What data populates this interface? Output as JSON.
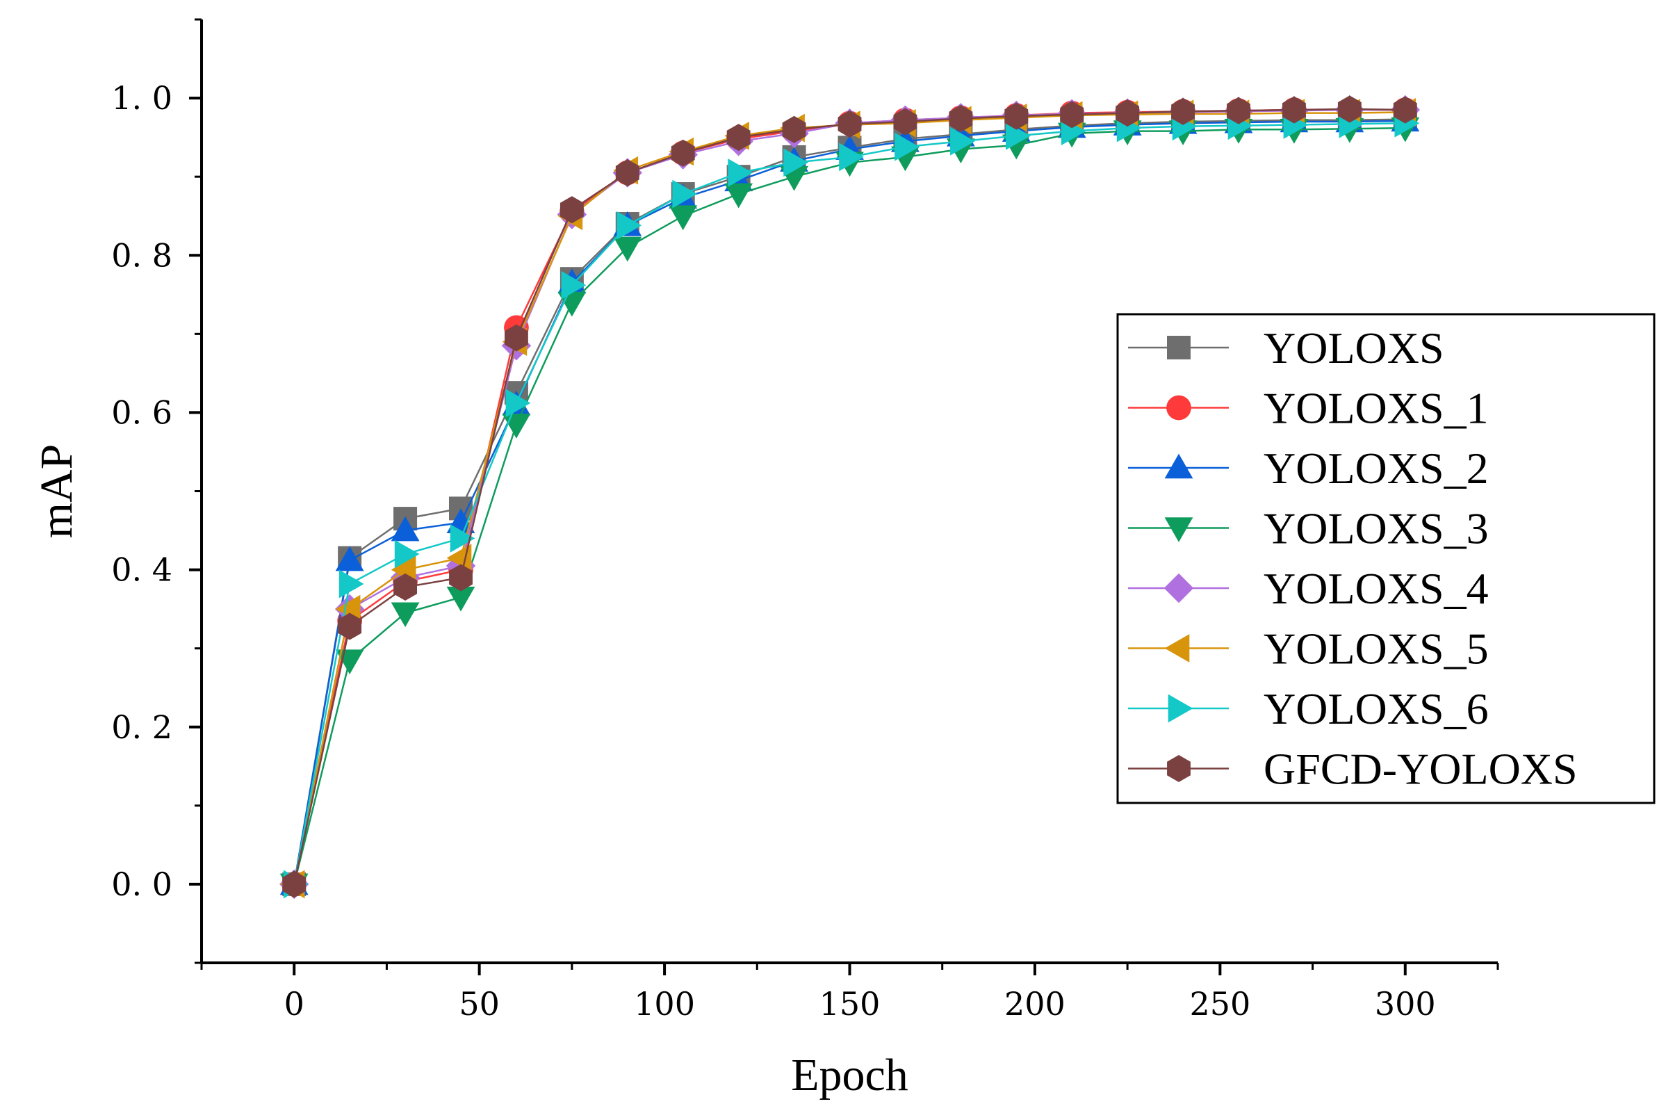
{
  "chart_data": {
    "type": "line",
    "title": "",
    "xlabel": "Epoch",
    "ylabel": "mAP",
    "xlim": [
      -25,
      325
    ],
    "ylim": [
      -0.1,
      1.1
    ],
    "xticks": [
      0,
      50,
      100,
      150,
      200,
      250,
      300
    ],
    "xtick_labels": [
      "0",
      "50",
      "100",
      "150",
      "200",
      "250",
      "300"
    ],
    "yticks": [
      0.0,
      0.2,
      0.4,
      0.6,
      0.8,
      1.0
    ],
    "ytick_labels": [
      "0. 0",
      "0. 2",
      "0. 4",
      "0. 6",
      "0. 8",
      "1. 0"
    ],
    "grid": false,
    "legend_position": "right",
    "x": [
      0,
      15,
      30,
      45,
      60,
      75,
      90,
      105,
      120,
      135,
      150,
      165,
      180,
      195,
      210,
      225,
      240,
      255,
      270,
      285,
      300
    ],
    "series": [
      {
        "name": "YOLOXS",
        "color": "#6e6e6e",
        "marker": "square",
        "values": [
          0.0,
          0.415,
          0.465,
          0.478,
          0.625,
          0.77,
          0.84,
          0.878,
          0.9,
          0.925,
          0.937,
          0.948,
          0.954,
          0.96,
          0.965,
          0.968,
          0.97,
          0.971,
          0.972,
          0.972,
          0.973
        ]
      },
      {
        "name": "YOLOXS_1",
        "color": "#ff3a3a",
        "marker": "circle",
        "values": [
          0.0,
          0.335,
          0.385,
          0.4,
          0.708,
          0.855,
          0.905,
          0.93,
          0.948,
          0.958,
          0.968,
          0.972,
          0.975,
          0.978,
          0.981,
          0.982,
          0.983,
          0.984,
          0.985,
          0.985,
          0.985
        ]
      },
      {
        "name": "YOLOXS_2",
        "color": "#0b5fd8",
        "marker": "triangle-up",
        "values": [
          0.0,
          0.412,
          0.45,
          0.46,
          0.61,
          0.765,
          0.838,
          0.873,
          0.895,
          0.92,
          0.935,
          0.945,
          0.952,
          0.958,
          0.963,
          0.966,
          0.968,
          0.969,
          0.97,
          0.97,
          0.971
        ]
      },
      {
        "name": "YOLOXS_3",
        "color": "#0e9c5c",
        "marker": "triangle-down",
        "values": [
          0.0,
          0.285,
          0.345,
          0.365,
          0.585,
          0.74,
          0.81,
          0.85,
          0.878,
          0.9,
          0.918,
          0.925,
          0.935,
          0.94,
          0.955,
          0.958,
          0.958,
          0.96,
          0.96,
          0.961,
          0.962
        ]
      },
      {
        "name": "YOLOXS_4",
        "color": "#b070e0",
        "marker": "diamond",
        "values": [
          0.0,
          0.35,
          0.39,
          0.405,
          0.685,
          0.852,
          0.905,
          0.928,
          0.945,
          0.955,
          0.968,
          0.972,
          0.975,
          0.978,
          0.98,
          0.981,
          0.982,
          0.983,
          0.984,
          0.985,
          0.985
        ]
      },
      {
        "name": "YOLOXS_5",
        "color": "#d8940a",
        "marker": "triangle-left",
        "values": [
          0.0,
          0.35,
          0.4,
          0.415,
          0.69,
          0.85,
          0.908,
          0.932,
          0.952,
          0.962,
          0.966,
          0.968,
          0.972,
          0.975,
          0.978,
          0.979,
          0.98,
          0.98,
          0.981,
          0.981,
          0.982
        ]
      },
      {
        "name": "YOLOXS_6",
        "color": "#14c8c8",
        "marker": "triangle-right",
        "values": [
          0.0,
          0.382,
          0.42,
          0.44,
          0.612,
          0.762,
          0.838,
          0.878,
          0.905,
          0.918,
          0.925,
          0.938,
          0.945,
          0.952,
          0.958,
          0.962,
          0.964,
          0.965,
          0.966,
          0.967,
          0.968
        ]
      },
      {
        "name": "GFCD-YOLOXS",
        "color": "#7b4040",
        "marker": "hexagon",
        "values": [
          0.0,
          0.328,
          0.378,
          0.39,
          0.695,
          0.858,
          0.905,
          0.93,
          0.95,
          0.96,
          0.967,
          0.97,
          0.974,
          0.977,
          0.979,
          0.981,
          0.983,
          0.984,
          0.985,
          0.986,
          0.985
        ]
      }
    ]
  }
}
